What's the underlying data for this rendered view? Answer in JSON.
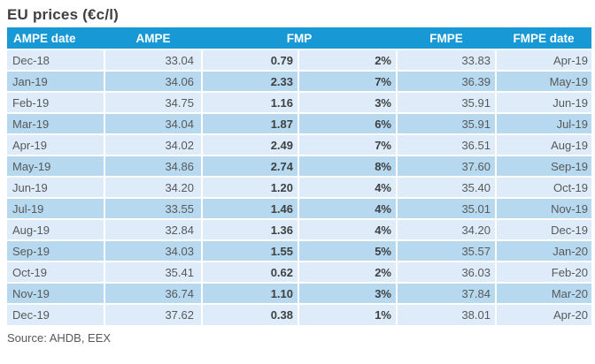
{
  "title": "EU prices (€c/l)",
  "source": "Source: AHDB, EEX",
  "colors": {
    "header_bg": "#1899d5",
    "header_text": "#ffffff",
    "row_light": "#ddecf8",
    "row_dark": "#b7d9ef",
    "body_text": "#58585a",
    "bold_text": "#3f4042",
    "title_text": "#404042"
  },
  "table": {
    "headers": {
      "ampe_date": "AMPE date",
      "ampe": "AMPE",
      "fmp": "FMP",
      "fmpe": "FMPE",
      "fmpe_date": "FMPE date"
    },
    "rows": [
      {
        "ampe_date": "Dec-18",
        "ampe": "33.04",
        "fmp": "0.79",
        "pct": "2%",
        "fmpe": "33.83",
        "fmpe_date": "Apr-19"
      },
      {
        "ampe_date": "Jan-19",
        "ampe": "34.06",
        "fmp": "2.33",
        "pct": "7%",
        "fmpe": "36.39",
        "fmpe_date": "May-19"
      },
      {
        "ampe_date": "Feb-19",
        "ampe": "34.75",
        "fmp": "1.16",
        "pct": "3%",
        "fmpe": "35.91",
        "fmpe_date": "Jun-19"
      },
      {
        "ampe_date": "Mar-19",
        "ampe": "34.04",
        "fmp": "1.87",
        "pct": "6%",
        "fmpe": "35.91",
        "fmpe_date": "Jul-19"
      },
      {
        "ampe_date": "Apr-19",
        "ampe": "34.02",
        "fmp": "2.49",
        "pct": "7%",
        "fmpe": "36.51",
        "fmpe_date": "Aug-19"
      },
      {
        "ampe_date": "May-19",
        "ampe": "34.86",
        "fmp": "2.74",
        "pct": "8%",
        "fmpe": "37.60",
        "fmpe_date": "Sep-19"
      },
      {
        "ampe_date": "Jun-19",
        "ampe": "34.20",
        "fmp": "1.20",
        "pct": "4%",
        "fmpe": "35.40",
        "fmpe_date": "Oct-19"
      },
      {
        "ampe_date": "Jul-19",
        "ampe": "33.55",
        "fmp": "1.46",
        "pct": "4%",
        "fmpe": "35.01",
        "fmpe_date": "Nov-19"
      },
      {
        "ampe_date": "Aug-19",
        "ampe": "32.84",
        "fmp": "1.36",
        "pct": "4%",
        "fmpe": "34.20",
        "fmpe_date": "Dec-19"
      },
      {
        "ampe_date": "Sep-19",
        "ampe": "34.03",
        "fmp": "1.55",
        "pct": "5%",
        "fmpe": "35.57",
        "fmpe_date": "Jan-20"
      },
      {
        "ampe_date": "Oct-19",
        "ampe": "35.41",
        "fmp": "0.62",
        "pct": "2%",
        "fmpe": "36.03",
        "fmpe_date": "Feb-20"
      },
      {
        "ampe_date": "Nov-19",
        "ampe": "36.74",
        "fmp": "1.10",
        "pct": "3%",
        "fmpe": "37.84",
        "fmpe_date": "Mar-20"
      },
      {
        "ampe_date": "Dec-19",
        "ampe": "37.62",
        "fmp": "0.38",
        "pct": "1%",
        "fmpe": "38.01",
        "fmpe_date": "Apr-20"
      }
    ]
  },
  "chart_data": {
    "type": "table",
    "title": "EU prices (€c/l)",
    "columns": [
      "AMPE date",
      "AMPE",
      "FMP",
      "FMP %",
      "FMPE",
      "FMPE date"
    ],
    "rows": [
      [
        "Dec-18",
        33.04,
        0.79,
        "2%",
        33.83,
        "Apr-19"
      ],
      [
        "Jan-19",
        34.06,
        2.33,
        "7%",
        36.39,
        "May-19"
      ],
      [
        "Feb-19",
        34.75,
        1.16,
        "3%",
        35.91,
        "Jun-19"
      ],
      [
        "Mar-19",
        34.04,
        1.87,
        "6%",
        35.91,
        "Jul-19"
      ],
      [
        "Apr-19",
        34.02,
        2.49,
        "7%",
        36.51,
        "Aug-19"
      ],
      [
        "May-19",
        34.86,
        2.74,
        "8%",
        37.6,
        "Sep-19"
      ],
      [
        "Jun-19",
        34.2,
        1.2,
        "4%",
        35.4,
        "Oct-19"
      ],
      [
        "Jul-19",
        33.55,
        1.46,
        "4%",
        35.01,
        "Nov-19"
      ],
      [
        "Aug-19",
        32.84,
        1.36,
        "4%",
        34.2,
        "Dec-19"
      ],
      [
        "Sep-19",
        34.03,
        1.55,
        "5%",
        35.57,
        "Jan-20"
      ],
      [
        "Oct-19",
        35.41,
        0.62,
        "2%",
        36.03,
        "Feb-20"
      ],
      [
        "Nov-19",
        36.74,
        1.1,
        "3%",
        37.84,
        "Mar-20"
      ],
      [
        "Dec-19",
        37.62,
        0.38,
        "1%",
        38.01,
        "Apr-20"
      ]
    ],
    "source": "AHDB, EEX"
  }
}
